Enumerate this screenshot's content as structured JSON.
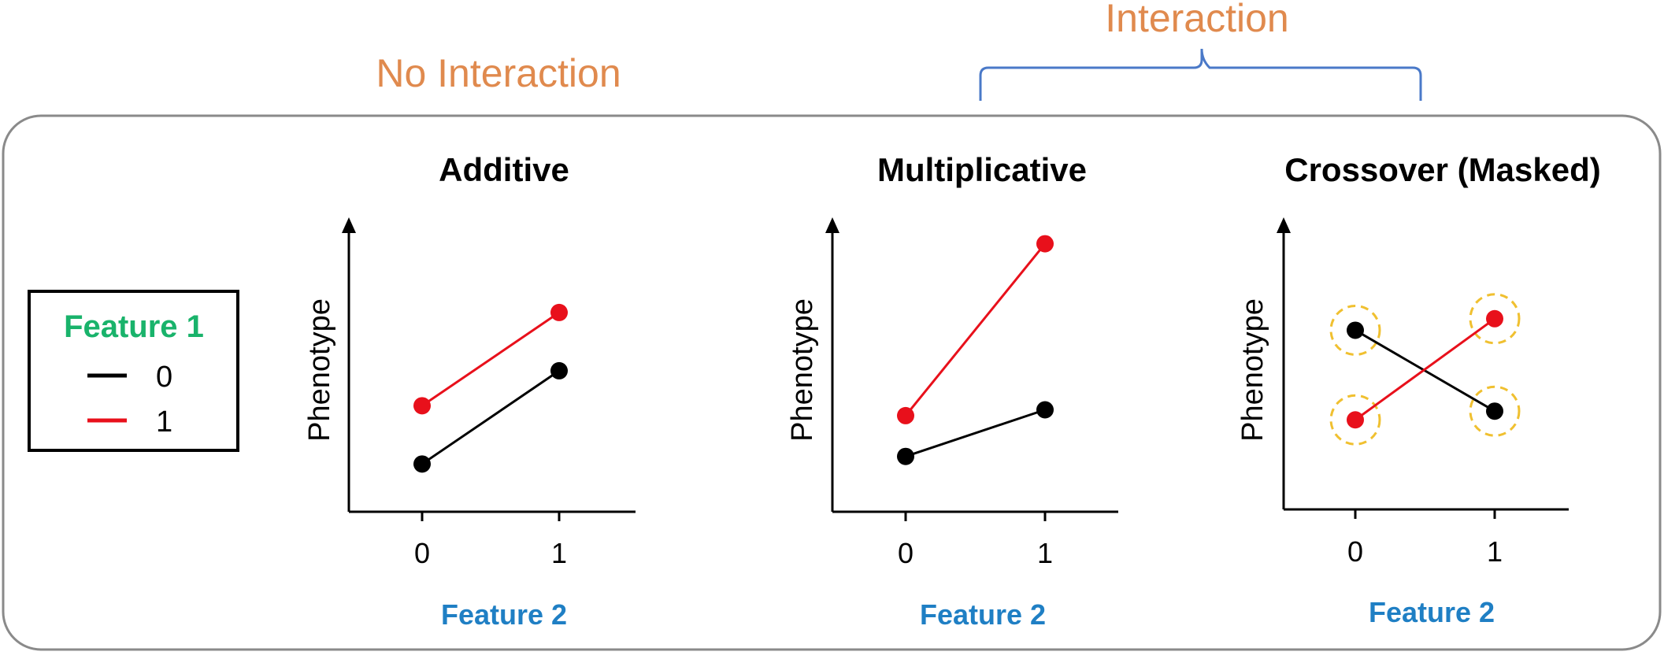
{
  "headings": {
    "no_interaction": "No Interaction",
    "interaction": "Interaction"
  },
  "legend": {
    "title": "Feature 1",
    "items": [
      {
        "label": "0",
        "color": "#000000"
      },
      {
        "label": "1",
        "color": "#e8101b"
      }
    ]
  },
  "colors": {
    "heading": "#e08a4e",
    "feature2": "#1f7fc4",
    "feature1": "#19b36b",
    "bracket": "#4a79c8",
    "mask_circle": "#f0c030",
    "frame": "#8a8a8a"
  },
  "chart_data": [
    {
      "type": "line",
      "title": "Additive",
      "xlabel": "Feature 2",
      "ylabel": "Phenotype",
      "categories": [
        "0",
        "1"
      ],
      "series": [
        {
          "name": "0",
          "color": "#000000",
          "values": [
            0.82,
            2.42
          ]
        },
        {
          "name": "1",
          "color": "#e8101b",
          "values": [
            1.82,
            3.42
          ]
        }
      ],
      "ylim": [
        0,
        5
      ],
      "masked": false
    },
    {
      "type": "line",
      "title": "Multiplicative",
      "xlabel": "Feature 2",
      "ylabel": "Phenotype",
      "categories": [
        "0",
        "1"
      ],
      "series": [
        {
          "name": "0",
          "color": "#000000",
          "values": [
            0.95,
            1.75
          ]
        },
        {
          "name": "1",
          "color": "#e8101b",
          "values": [
            1.65,
            4.6
          ]
        }
      ],
      "ylim": [
        0,
        5
      ],
      "masked": false
    },
    {
      "type": "line",
      "title": "Crossover (Masked)",
      "xlabel": "Feature 2",
      "ylabel": "Phenotype",
      "categories": [
        "0",
        "1"
      ],
      "series": [
        {
          "name": "0",
          "color": "#000000",
          "values": [
            3.1,
            1.7
          ]
        },
        {
          "name": "1",
          "color": "#e8101b",
          "values": [
            1.55,
            3.3
          ]
        }
      ],
      "ylim": [
        0,
        5
      ],
      "masked": true
    }
  ]
}
